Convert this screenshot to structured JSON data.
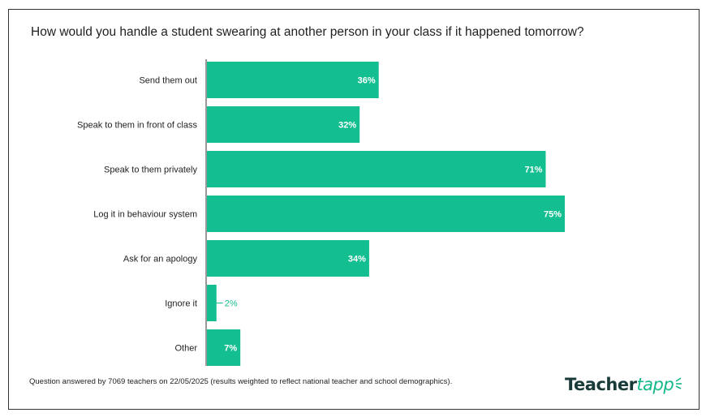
{
  "title": "How would you handle a student swearing at another person in your class if it happened tomorrow?",
  "footnote": "Question answered by 7069 teachers on 22/05/2025 (results weighted to reflect national teacher and school demographics).",
  "logo": {
    "part1": "Teacher",
    "part2": "tapp"
  },
  "colors": {
    "bar": "#13be90",
    "label_inside": "#ffffff",
    "label_outside": "#13be90",
    "axis": "#333333"
  },
  "chart_data": {
    "type": "bar",
    "orientation": "horizontal",
    "categories": [
      "Send them out",
      "Speak to them in front of class",
      "Speak to them privately",
      "Log it in behaviour system",
      "Ask for an apology",
      "Ignore it",
      "Other"
    ],
    "values": [
      36,
      32,
      71,
      75,
      34,
      2,
      7
    ],
    "value_labels": [
      "36%",
      "32%",
      "71%",
      "75%",
      "34%",
      "2%",
      "7%"
    ],
    "unit": "%",
    "xlim": [
      0,
      100
    ],
    "grid": false,
    "legend": "none"
  }
}
